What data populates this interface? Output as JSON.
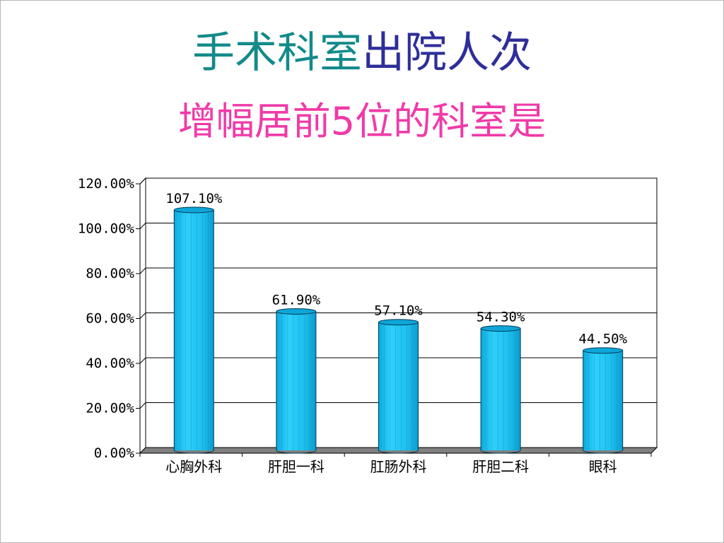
{
  "title": {
    "line1_part1": "手术科室",
    "line1_part2": "出院人次",
    "line2": "增幅居前5位的科室是"
  },
  "colors": {
    "title_part1": "#138a8a",
    "title_part2": "#2e2e9a",
    "title_line2": "#f03aa8",
    "bar_fill": "#1ec0ef",
    "bar_top": "#0ea6d8",
    "bar_stroke": "#003a55",
    "grid": "#000000",
    "floor": "#808080"
  },
  "chart_data": {
    "type": "bar",
    "style": "cylinder-3d",
    "categories": [
      "心胸外科",
      "肝胆一科",
      "肛肠外科",
      "肝胆二科",
      "眼科"
    ],
    "values": [
      107.1,
      61.9,
      57.1,
      54.3,
      44.5
    ],
    "data_labels": [
      "107.10%",
      "61.90%",
      "57.10%",
      "54.30%",
      "44.50%"
    ],
    "ylim": [
      0,
      120
    ],
    "yticks": [
      0,
      20,
      40,
      60,
      80,
      100,
      120
    ],
    "ytick_labels": [
      "0.00%",
      "20.00%",
      "40.00%",
      "60.00%",
      "80.00%",
      "100.00%",
      "120.00%"
    ],
    "grid": true,
    "legend": "none"
  }
}
